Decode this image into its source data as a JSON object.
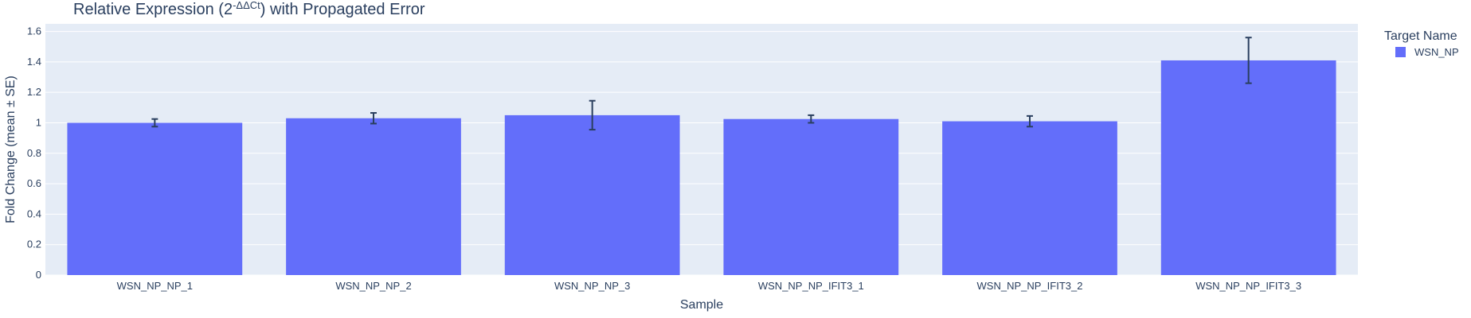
{
  "chart_data": {
    "type": "bar",
    "title": "Relative Expression (2^-ΔΔCt) with Propagated Error",
    "xlabel": "Sample",
    "ylabel": "Fold Change (mean ± SE)",
    "ylim": [
      0,
      1.65
    ],
    "yticks": [
      0,
      0.2,
      0.4,
      0.6,
      0.8,
      1,
      1.2,
      1.4,
      1.6
    ],
    "grid": true,
    "legend": {
      "title": "Target Name",
      "placement": "top-right"
    },
    "categories": [
      "WSN_NP_NP_1",
      "WSN_NP_NP_2",
      "WSN_NP_NP_3",
      "WSN_NP_NP_IFIT3_1",
      "WSN_NP_NP_IFIT3_2",
      "WSN_NP_NP_IFIT3_3"
    ],
    "series": [
      {
        "name": "WSN_NP",
        "color": "#636efa",
        "values": [
          1.0,
          1.03,
          1.05,
          1.025,
          1.01,
          1.41
        ],
        "errors": [
          0.025,
          0.035,
          0.095,
          0.025,
          0.035,
          0.15
        ]
      }
    ]
  }
}
